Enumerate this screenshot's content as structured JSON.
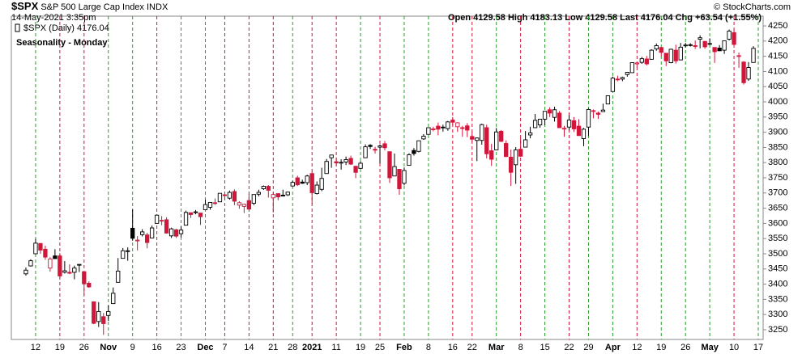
{
  "header": {
    "symbol": "$SPX",
    "name": "S&P 500 Large Cap Index",
    "exchange": "INDX",
    "date": "14-May-2021 3:35pm",
    "stats": "Open 4129.58  High 4183.13  Low 4129.58  Last 4176.04  Chg +63.54 (+1.55%)",
    "source": "© StockCharts.com"
  },
  "chart_data": {
    "type": "candlestick",
    "title": "Seasonality - Monday",
    "legend": "$SPX (Daily) 4176.04",
    "up_color": "#000000",
    "down_color": "#d1163b",
    "title_color": "#1a1ad8",
    "ylim": [
      3218,
      4282
    ],
    "yticks": [
      3250,
      3300,
      3350,
      3400,
      3450,
      3500,
      3550,
      3600,
      3650,
      3700,
      3750,
      3800,
      3850,
      3900,
      3950,
      4000,
      4050,
      4100,
      4150,
      4200,
      4250
    ],
    "xlim": [
      -3,
      152
    ],
    "xticks": [
      {
        "value": 2,
        "label": "12"
      },
      {
        "value": 7,
        "label": "19"
      },
      {
        "value": 12,
        "label": "26"
      },
      {
        "value": 17,
        "label": "Nov"
      },
      {
        "value": 22,
        "label": "9"
      },
      {
        "value": 27,
        "label": "16"
      },
      {
        "value": 32,
        "label": "23"
      },
      {
        "value": 37,
        "label": "Dec"
      },
      {
        "value": 41,
        "label": "7"
      },
      {
        "value": 46,
        "label": "14"
      },
      {
        "value": 51,
        "label": "21"
      },
      {
        "value": 55,
        "label": "28"
      },
      {
        "value": 59,
        "label": "2021"
      },
      {
        "value": 64,
        "label": "11"
      },
      {
        "value": 69,
        "label": "19"
      },
      {
        "value": 73,
        "label": "25"
      },
      {
        "value": 78,
        "label": "Feb"
      },
      {
        "value": 83,
        "label": "8"
      },
      {
        "value": 88,
        "label": "16"
      },
      {
        "value": 92,
        "label": "22"
      },
      {
        "value": 97,
        "label": "Mar"
      },
      {
        "value": 102,
        "label": "8"
      },
      {
        "value": 107,
        "label": "15"
      },
      {
        "value": 112,
        "label": "22"
      },
      {
        "value": 116,
        "label": "29"
      },
      {
        "value": 121,
        "label": "Apr"
      },
      {
        "value": 126,
        "label": "12"
      },
      {
        "value": 131,
        "label": "19"
      },
      {
        "value": 136,
        "label": "26"
      },
      {
        "value": 141,
        "label": "May"
      },
      {
        "value": 146,
        "label": "10"
      },
      {
        "value": 151,
        "label": "17"
      }
    ],
    "xtick_line_colors": [
      "#2a9d2a",
      "#d1163b",
      "#d1163b",
      "#2a9d2a",
      "#2a9d2a",
      "#d1163b",
      "#2a9d2a",
      "#2a9d2a",
      "#d1163b",
      "#d1163b",
      "#d1163b",
      "#2a9d2a",
      "#d1163b",
      "#d1163b",
      "#2a9d2a",
      "#d1163b",
      "#2a9d2a",
      "#2a9d2a",
      "#d1163b",
      "#d1163b",
      "#2a9d2a",
      "#d1163b",
      "#2a9d2a",
      "#d1163b",
      "#2a9d2a",
      "#2a9d2a",
      "#d1163b",
      "#2a9d2a",
      "#2a9d2a",
      "#2a9d2a",
      "#d1163b",
      "#2a9d2a"
    ],
    "open": [
      3434,
      3460,
      3500,
      3534,
      3515,
      3453,
      3493,
      3493,
      3439,
      3439,
      3439,
      3464,
      3441,
      3403,
      3342,
      3277,
      3293,
      3297,
      3336,
      3406,
      3485,
      3508,
      3584,
      3543,
      3563,
      3562,
      3552,
      3600,
      3610,
      3612,
      3559,
      3579,
      3566,
      3594,
      3635,
      3638,
      3634,
      3645,
      3653,
      3668,
      3671,
      3694,
      3683,
      3705,
      3660,
      3656,
      3675,
      3666,
      3696,
      3714,
      3722,
      3684,
      3698,
      3693,
      3694,
      3723,
      3750,
      3736,
      3734,
      3764,
      3698,
      3712,
      3764,
      3816,
      3803,
      3801,
      3802,
      3814,
      3788,
      3781,
      3816,
      3857,
      3844,
      3851,
      3862,
      3836,
      3756,
      3778,
      3732,
      3791,
      3840,
      3837,
      3878,
      3893,
      3911,
      3920,
      3917,
      3912,
      3940,
      3918,
      3915,
      3921,
      3886,
      3873,
      3873,
      3915,
      3839,
      3842,
      3903,
      3863,
      3818,
      3793,
      3844,
      3851,
      3891,
      3915,
      3924,
      3943,
      3974,
      3949,
      3963,
      3913,
      3917,
      3938,
      3920,
      3879,
      3917,
      3970,
      3963,
      3968,
      3993,
      4034,
      4075,
      4075,
      4090,
      4096,
      4125,
      4130,
      4141,
      4140,
      4174,
      4179,
      4160,
      4129,
      4170,
      4138,
      4185,
      4188,
      4185,
      4206,
      4199,
      4192,
      4179,
      4177,
      4170,
      4206,
      4228,
      4150,
      4131,
      4075,
      4129.58
    ],
    "high": [
      3455,
      3482,
      3549,
      3534,
      3527,
      3489,
      3515,
      3502,
      3476,
      3465,
      3461,
      3466,
      3441,
      3409,
      3342,
      3341,
      3305,
      3330,
      3389,
      3486,
      3519,
      3521,
      3646,
      3558,
      3581,
      3569,
      3593,
      3628,
      3624,
      3620,
      3586,
      3582,
      3590,
      3642,
      3635,
      3644,
      3634,
      3678,
      3670,
      3682,
      3699,
      3697,
      3708,
      3712,
      3673,
      3665,
      3697,
      3695,
      3711,
      3725,
      3726,
      3702,
      3698,
      3711,
      3704,
      3740,
      3757,
      3744,
      3760,
      3770,
      3738,
      3783,
      3812,
      3826,
      3817,
      3811,
      3820,
      3823,
      3788,
      3805,
      3860,
      3861,
      3852,
      3860,
      3871,
      3836,
      3830,
      3778,
      3784,
      3831,
      3848,
      3872,
      3894,
      3916,
      3918,
      3932,
      3925,
      3937,
      3950,
      3933,
      3921,
      3930,
      3902,
      3883,
      3928,
      3925,
      3862,
      3914,
      3907,
      3873,
      3843,
      3851,
      3881,
      3904,
      3918,
      3960,
      3944,
      3970,
      3982,
      3984,
      3970,
      3921,
      3956,
      3950,
      3943,
      3914,
      3978,
      3975,
      3968,
      3994,
      4021,
      4083,
      4086,
      4083,
      4098,
      4129,
      4131,
      4148,
      4151,
      4173,
      4192,
      4180,
      4160,
      4175,
      4188,
      4194,
      4194,
      4193,
      4202,
      4219,
      4199,
      4209,
      4179,
      4187,
      4202,
      4238,
      4237,
      4162,
      4134,
      4131,
      4183.13
    ],
    "low": [
      3428,
      3458,
      3499,
      3500,
      3480,
      3441,
      3483,
      3419,
      3435,
      3433,
      3416,
      3440,
      3364,
      3388,
      3268,
      3259,
      3233,
      3279,
      3336,
      3405,
      3485,
      3477,
      3543,
      3511,
      3557,
      3518,
      3552,
      3600,
      3594,
      3567,
      3552,
      3552,
      3554,
      3594,
      3618,
      3630,
      3595,
      3645,
      3645,
      3661,
      3670,
      3679,
      3678,
      3660,
      3648,
      3634,
      3645,
      3660,
      3689,
      3710,
      3685,
      3636,
      3676,
      3689,
      3690,
      3723,
      3723,
      3730,
      3726,
      3663,
      3695,
      3706,
      3764,
      3783,
      3789,
      3777,
      3792,
      3792,
      3749,
      3780,
      3816,
      3845,
      3830,
      3797,
      3840,
      3733,
      3756,
      3694,
      3725,
      3791,
      3823,
      3834,
      3875,
      3892,
      3903,
      3890,
      3902,
      3905,
      3923,
      3901,
      3885,
      3884,
      3867,
      3805,
      3859,
      3814,
      3789,
      3842,
      3868,
      3818,
      3723,
      3730,
      3819,
      3851,
      3880,
      3915,
      3915,
      3923,
      3950,
      3935,
      3914,
      3885,
      3907,
      3901,
      3888,
      3854,
      3888,
      3946,
      3944,
      3967,
      3993,
      4034,
      4068,
      4068,
      4083,
      4096,
      4114,
      4125,
      4120,
      4140,
      4168,
      4150,
      4118,
      4127,
      4126,
      4138,
      4179,
      4182,
      4174,
      4176,
      4175,
      4188,
      4128,
      4168,
      4158,
      4202,
      4188,
      4112,
      4057,
      4069,
      4129.58
    ],
    "close": [
      3446,
      3477,
      3535,
      3512,
      3489,
      3483,
      3484,
      3427,
      3444,
      3436,
      3453,
      3465,
      3401,
      3391,
      3271,
      3310,
      3270,
      3310,
      3370,
      3443,
      3510,
      3510,
      3551,
      3545,
      3572,
      3537,
      3585,
      3627,
      3610,
      3568,
      3582,
      3558,
      3578,
      3636,
      3629,
      3638,
      3622,
      3662,
      3669,
      3667,
      3699,
      3692,
      3702,
      3673,
      3668,
      3663,
      3647,
      3695,
      3702,
      3722,
      3709,
      3695,
      3687,
      3690,
      3703,
      3735,
      3727,
      3732,
      3756,
      3701,
      3726,
      3748,
      3804,
      3825,
      3799,
      3801,
      3810,
      3795,
      3768,
      3798,
      3852,
      3853,
      3841,
      3855,
      3849,
      3750,
      3787,
      3714,
      3774,
      3826,
      3830,
      3872,
      3887,
      3915,
      3911,
      3910,
      3916,
      3934,
      3933,
      3931,
      3914,
      3907,
      3877,
      3881,
      3925,
      3829,
      3811,
      3901,
      3870,
      3820,
      3768,
      3842,
      3821,
      3875,
      3898,
      3939,
      3943,
      3969,
      3963,
      3974,
      3915,
      3913,
      3940,
      3911,
      3889,
      3910,
      3975,
      3971,
      3959,
      3973,
      4020,
      4078,
      4074,
      4080,
      4097,
      4129,
      4128,
      4142,
      4125,
      4170,
      4185,
      4163,
      4135,
      4173,
      4135,
      4180,
      4187,
      4187,
      4183,
      4211,
      4181,
      4192,
      4165,
      4168,
      4201,
      4233,
      4189,
      4152,
      4063,
      4113,
      4176.04
    ]
  }
}
